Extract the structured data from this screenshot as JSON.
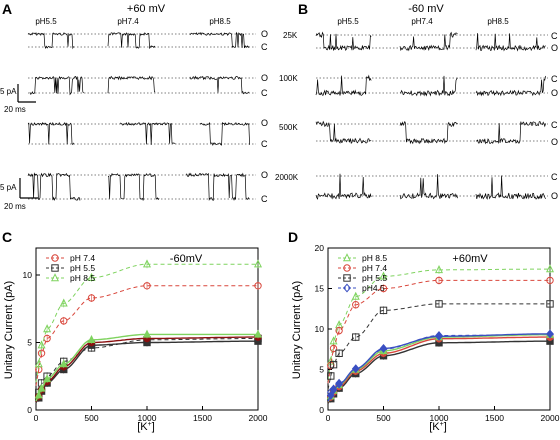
{
  "panels": {
    "A": {
      "letter": "A",
      "voltage": "+60 mV",
      "ph_labels": [
        "pH5.5",
        "pH7.4",
        "pH8.5"
      ],
      "state_open": "O",
      "state_closed": "C",
      "scale_top_current": "5 pA",
      "scale_top_time": "20 ms",
      "scale_bottom_current": "5 pA",
      "scale_bottom_time": "20 ms"
    },
    "B": {
      "letter": "B",
      "voltage": "-60 mV",
      "ph_labels": [
        "pH5.5",
        "pH7.4",
        "pH8.5"
      ],
      "state_open": "O",
      "state_closed": "C"
    },
    "conc_labels": [
      "25K",
      "100K",
      "500K",
      "2000K"
    ],
    "C": {
      "letter": "C",
      "condition": "-60mV",
      "ylabel": "Unitary Current (pA)",
      "xlabel_base": "[K",
      "xlabel_sup": "+",
      "xlabel_end": "]",
      "legend": [
        "pH 7.4",
        "pH 5.5",
        "pH 8.5"
      ]
    },
    "D": {
      "letter": "D",
      "condition": "+60mV",
      "ylabel": "Unitary Current (pA)",
      "xlabel_base": "[K",
      "xlabel_sup": "+",
      "xlabel_end": "]",
      "legend": [
        "pH 8.5",
        "pH 7.4",
        "pH 5.5",
        "pH4.5"
      ]
    }
  },
  "colors": {
    "ph85": "#7fd35f",
    "ph74": "#d9473c",
    "ph55": "#333333",
    "ph45": "#3a4fc2",
    "dark_red": "#8b1010",
    "olive": "#b6a11e"
  },
  "chart_data": [
    {
      "type": "scatter",
      "panel": "C",
      "title": "-60mV",
      "xlabel": "[K+]",
      "ylabel": "Unitary Current (pA)",
      "xlim": [
        0,
        2000
      ],
      "ylim": [
        0,
        12
      ],
      "xticks": [
        0,
        500,
        1000,
        1500,
        2000
      ],
      "yticks": [
        0,
        5,
        10
      ],
      "grid": false,
      "legend_position": "top-left",
      "x": [
        25,
        50,
        100,
        250,
        500,
        1000,
        2000
      ],
      "series": [
        {
          "name": "pH 7.4",
          "style": "open-circle dashed",
          "color_key": "ph74",
          "values": [
            3.0,
            4.2,
            5.3,
            6.6,
            8.3,
            9.2,
            9.2
          ]
        },
        {
          "name": "pH 5.5",
          "style": "open-square dashed",
          "color_key": "ph55",
          "values": [
            1.3,
            2.0,
            2.5,
            3.6,
            4.6,
            5.2,
            5.3
          ]
        },
        {
          "name": "pH 8.5",
          "style": "open-triangle dashed",
          "color_key": "ph85",
          "values": [
            3.4,
            4.8,
            6.0,
            7.9,
            9.8,
            10.8,
            10.8
          ]
        },
        {
          "style": "filled-square solid",
          "color_key": "ph55",
          "values": [
            0.9,
            1.4,
            2.0,
            3.0,
            4.8,
            5.0,
            5.1
          ]
        },
        {
          "style": "filled-circle solid",
          "color_key": "dark_red",
          "values": [
            1.0,
            1.5,
            2.1,
            3.2,
            5.0,
            5.3,
            5.4
          ]
        },
        {
          "style": "filled-triangle solid",
          "color_key": "ph85",
          "values": [
            1.1,
            1.6,
            2.3,
            3.4,
            5.2,
            5.6,
            5.6
          ]
        }
      ]
    },
    {
      "type": "scatter",
      "panel": "D",
      "title": "+60mV",
      "xlabel": "[K+]",
      "ylabel": "Unitary Current (pA)",
      "xlim": [
        0,
        2000
      ],
      "ylim": [
        0,
        20
      ],
      "xticks": [
        0,
        500,
        1000,
        1500,
        2000
      ],
      "yticks": [
        0,
        5,
        10,
        15,
        20
      ],
      "grid": false,
      "legend_position": "top-left",
      "x": [
        25,
        50,
        100,
        250,
        500,
        1000,
        2000
      ],
      "series": [
        {
          "name": "pH 8.5",
          "style": "open-triangle dashed",
          "color_key": "ph85",
          "values": [
            6.0,
            8.5,
            10.5,
            14.0,
            16.5,
            17.3,
            17.4
          ]
        },
        {
          "name": "pH 7.4",
          "style": "open-circle dashed",
          "color_key": "ph74",
          "values": [
            5.5,
            7.6,
            9.8,
            13.0,
            15.0,
            16.0,
            16.0
          ]
        },
        {
          "name": "pH 5.5",
          "style": "open-square dashed",
          "color_key": "ph55",
          "values": [
            4.2,
            5.6,
            7.0,
            9.0,
            12.3,
            13.1,
            13.1
          ]
        },
        {
          "name": "pH4.5",
          "style": "open-diamond dashed",
          "color_key": "ph45",
          "values": [
            2.2,
            2.6,
            3.3,
            4.9,
            7.5,
            9.2,
            9.3
          ]
        },
        {
          "style": "filled-square solid",
          "color_key": "ph55",
          "values": [
            1.4,
            2.0,
            2.7,
            4.5,
            6.7,
            8.3,
            8.5
          ]
        },
        {
          "style": "filled-circle solid",
          "color_key": "ph74",
          "values": [
            1.6,
            2.2,
            2.9,
            4.8,
            7.0,
            8.8,
            9.0
          ]
        },
        {
          "style": "filled-triangle solid",
          "color_key": "ph85",
          "values": [
            1.7,
            2.4,
            3.1,
            5.0,
            7.3,
            9.0,
            9.3
          ]
        },
        {
          "style": "filled-diamond solid",
          "color_key": "ph45",
          "values": [
            1.8,
            2.5,
            3.2,
            5.1,
            7.6,
            9.1,
            9.4
          ]
        }
      ]
    }
  ]
}
